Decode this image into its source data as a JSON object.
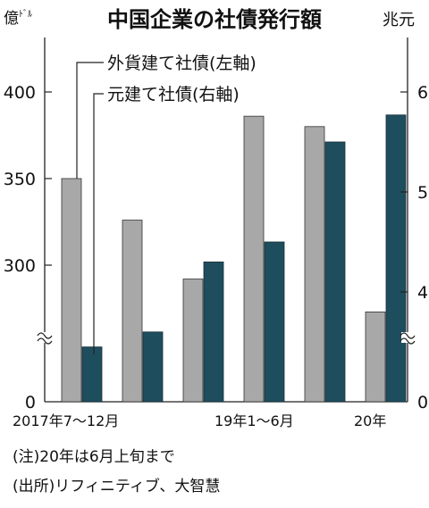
{
  "chart_data": {
    "type": "bar",
    "title": "中国企業の社債発行額",
    "left_unit": "億",
    "left_unit_sub": "ﾄﾞﾙ",
    "right_unit": "兆元",
    "categories": [
      "2017年7〜12月",
      "",
      "",
      "19年1〜6月",
      "",
      "20年"
    ],
    "left_axis": {
      "ticks": [
        0,
        300,
        350,
        400
      ],
      "break_below": 270
    },
    "right_axis": {
      "ticks": [
        0,
        4,
        5,
        6
      ],
      "break_below": 3.3
    },
    "series": [
      {
        "name": "外貨建て社債(左軸)",
        "axis": "left",
        "color": "#a8a8a8",
        "values": [
          350,
          326,
          292,
          386,
          380,
          273
        ]
      },
      {
        "name": "元建て社債(右軸)",
        "axis": "right",
        "color": "#1e4e5e",
        "values": [
          3.45,
          3.6,
          4.3,
          4.5,
          5.5,
          5.77
        ]
      }
    ],
    "notes": [
      "(注)20年は6月上旬まで",
      "(出所)リフィニティブ、大智慧"
    ]
  }
}
